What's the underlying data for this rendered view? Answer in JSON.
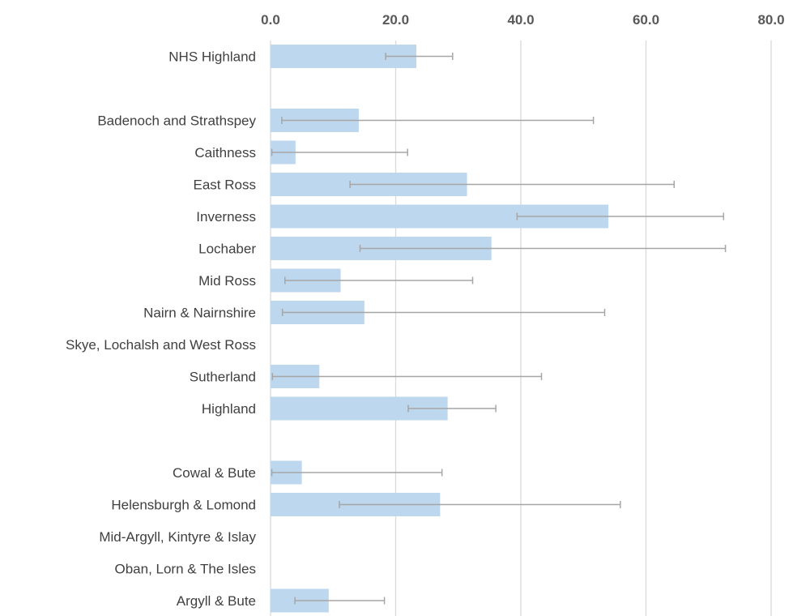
{
  "chart_data": {
    "type": "bar",
    "orientation": "horizontal",
    "title": "",
    "xlabel": "",
    "ylabel": "",
    "xlim": [
      0,
      80
    ],
    "x_ticks": [
      "0.0",
      "20.0",
      "40.0",
      "60.0",
      "80.0"
    ],
    "x_tick_values": [
      0,
      20,
      40,
      60,
      80
    ],
    "x_axis_position": "top",
    "grid": true,
    "legend": false,
    "colors": {
      "bar": "#bdd7ee",
      "error_bar": "#a6a6a6",
      "grid": "#d9d9d9"
    },
    "categories": [
      "NHS Highland",
      "",
      "Badenoch and Strathspey",
      "Caithness",
      "East Ross",
      "Inverness",
      "Lochaber",
      "Mid Ross",
      "Nairn & Nairnshire",
      "Skye, Lochalsh and West Ross",
      "Sutherland",
      "Highland",
      "",
      "Cowal & Bute",
      "Helensburgh & Lomond",
      "Mid-Argyll, Kintyre & Islay",
      "Oban, Lorn & The Isles",
      "Argyll & Bute"
    ],
    "values": [
      23.3,
      null,
      14.1,
      4.0,
      31.4,
      54.0,
      35.3,
      11.2,
      15.0,
      null,
      7.8,
      28.3,
      null,
      5.0,
      27.1,
      null,
      null,
      9.3
    ],
    "error_low": [
      18.4,
      null,
      1.8,
      0.2,
      12.7,
      39.4,
      14.3,
      2.3,
      1.9,
      null,
      0.3,
      22.0,
      null,
      0.2,
      11.0,
      null,
      null,
      3.9
    ],
    "error_high": [
      29.1,
      null,
      51.6,
      21.9,
      64.5,
      72.4,
      72.7,
      32.3,
      53.4,
      null,
      43.3,
      36.0,
      null,
      27.4,
      55.9,
      null,
      null,
      18.2
    ]
  }
}
